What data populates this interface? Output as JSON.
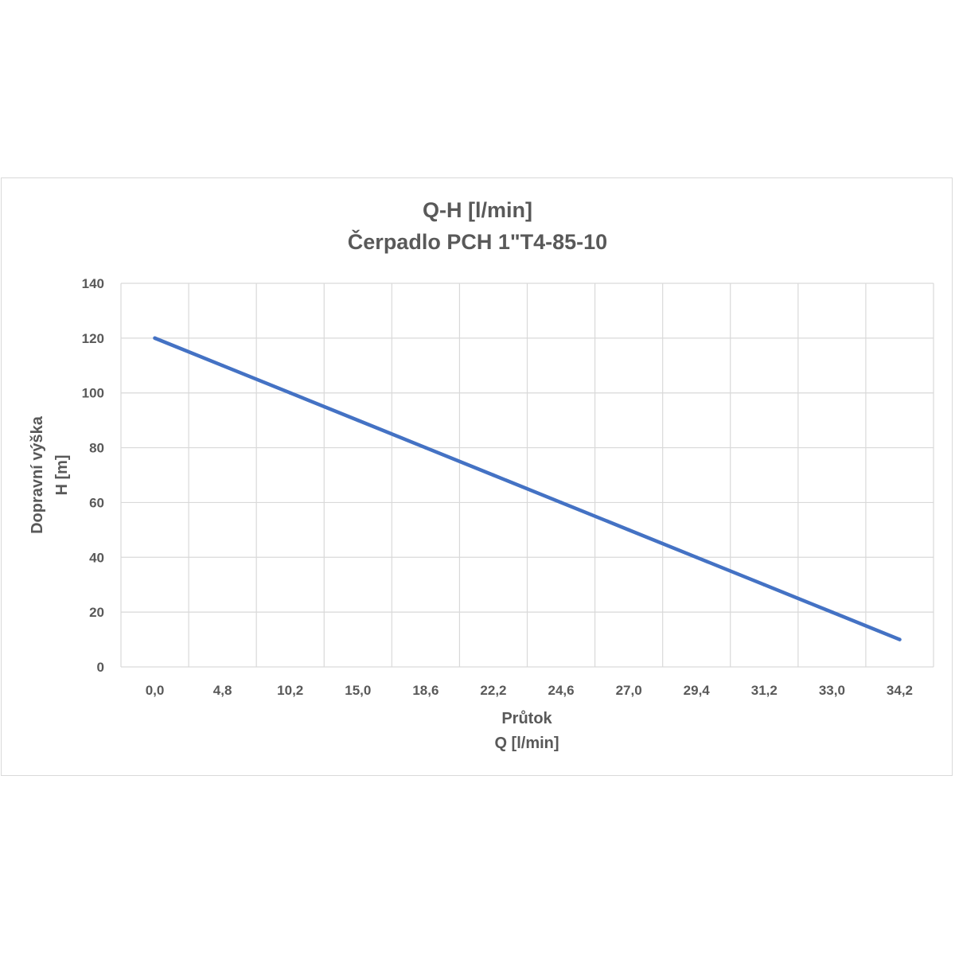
{
  "chart_data": {
    "type": "line",
    "title": [
      "Q-H [l/min]",
      "Čerpadlo PCH 1\"T4-85-10"
    ],
    "xlabel": [
      "Průtok",
      "Q [l/min]"
    ],
    "ylabel": [
      "Dopravní výška",
      "H [m]"
    ],
    "categories": [
      "0,0",
      "4,8",
      "10,2",
      "15,0",
      "18,6",
      "22,2",
      "24,6",
      "27,0",
      "29,4",
      "31,2",
      "33,0",
      "34,2"
    ],
    "series": [
      {
        "values": [
          120,
          110,
          100,
          90,
          80,
          70,
          60,
          50,
          40,
          30,
          20,
          10
        ]
      }
    ],
    "ylim": [
      0,
      140
    ],
    "yticks": [
      0,
      20,
      40,
      60,
      80,
      100,
      120,
      140
    ],
    "grid": true,
    "line_color": "#4472c4",
    "grid_color": "#d9d9d9",
    "text_color": "#595959"
  }
}
